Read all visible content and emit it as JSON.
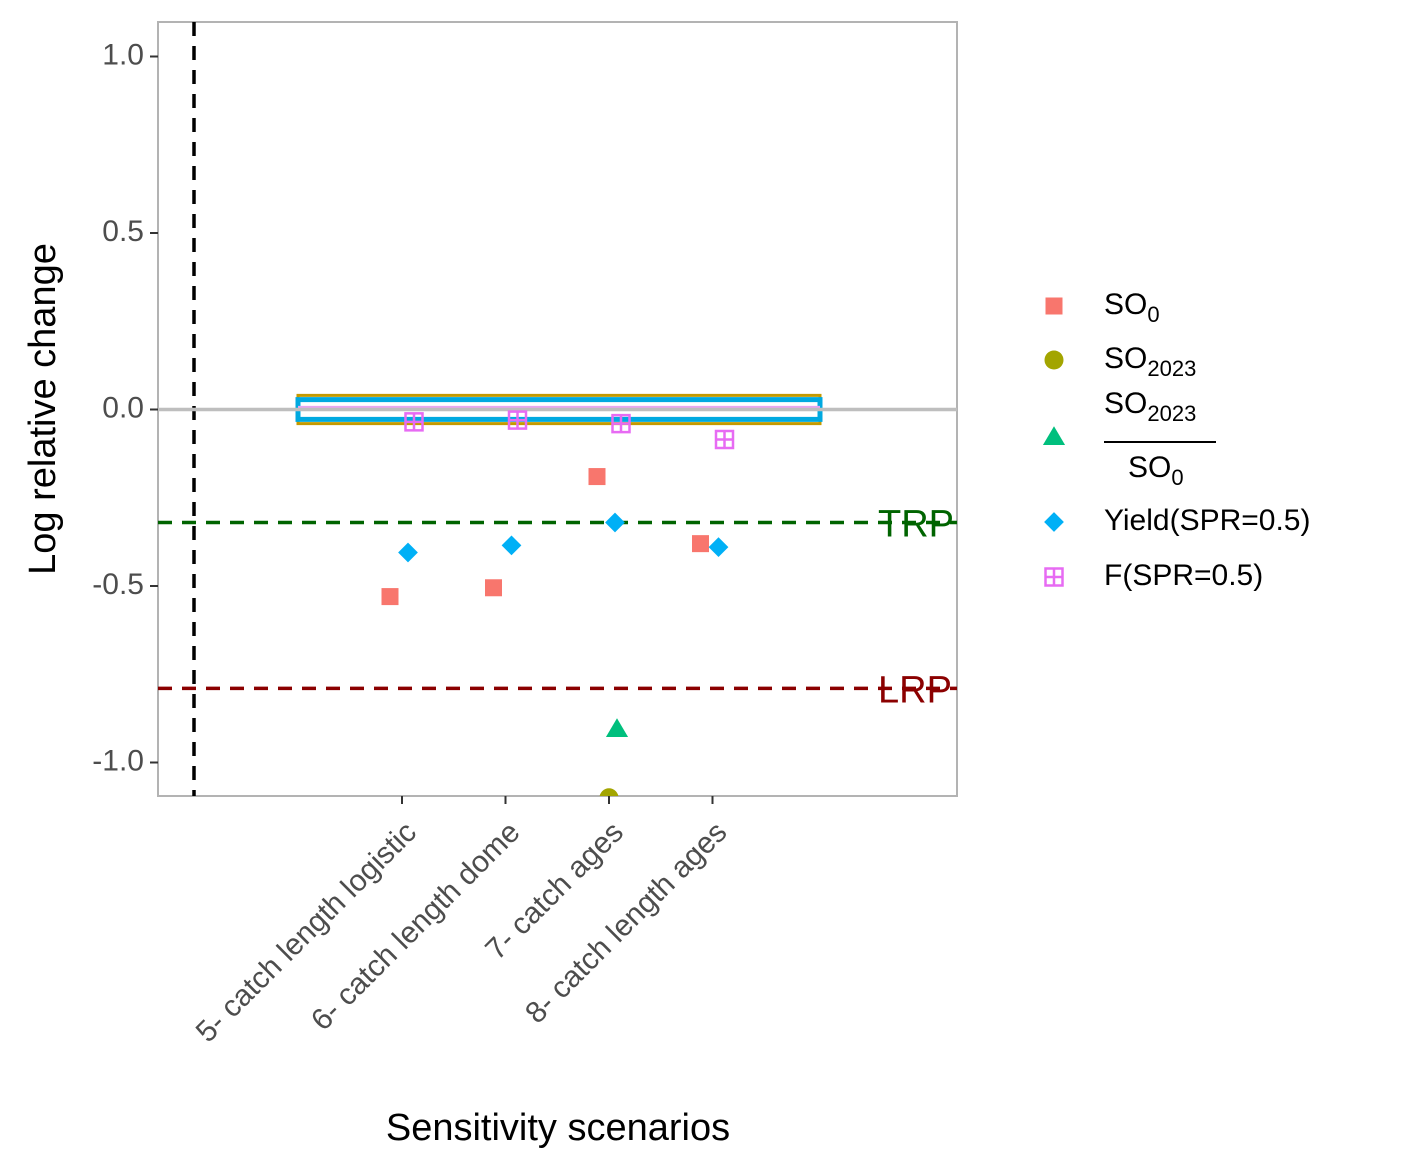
{
  "chart_data": {
    "type": "scatter",
    "xlabel": "Sensitivity scenarios",
    "ylabel": "Log relative change",
    "ylim": [
      -1.1,
      1.1
    ],
    "y_ticks": [
      "1.0",
      "0.5",
      "0.0",
      "-0.5",
      "-1.0"
    ],
    "y_tick_values": [
      1.0,
      0.5,
      0.0,
      -0.5,
      -1.0
    ],
    "grid": false,
    "legend_position": "right",
    "categories": [
      "5- catch length logistic",
      "6- catch length dome",
      "7- catch ages",
      "8- catch length ages"
    ],
    "reference_lines": [
      {
        "label": "TRP",
        "y": -0.32,
        "color": "#006400",
        "style": "dashed"
      },
      {
        "label": "LRP",
        "y": -0.79,
        "color": "#8b0000",
        "style": "dashed"
      },
      {
        "label": "",
        "y": 0.0,
        "color": "#bebebe",
        "style": "solid"
      }
    ],
    "series": [
      {
        "name": "SO",
        "name_sub": "0",
        "shape": "square",
        "color": "#F8766D",
        "values": [
          -0.53,
          -0.505,
          -0.19,
          -0.38
        ]
      },
      {
        "name": "SO",
        "name_sub": "2023",
        "shape": "circle",
        "color": "#A3A500",
        "values": [
          null,
          null,
          -1.1,
          null
        ]
      },
      {
        "name": "SO",
        "name_sub": "2023",
        "name_den": "SO",
        "name_den_sub": "0",
        "shape": "triangle",
        "color": "#00BF7D",
        "values": [
          null,
          null,
          -0.905,
          null
        ]
      },
      {
        "name": "Yield(SPR=0.5)",
        "shape": "diamond",
        "color": "#00B0F6",
        "values": [
          -0.405,
          -0.385,
          -0.32,
          -0.39
        ]
      },
      {
        "name": "F(SPR=0.5)",
        "shape": "square-cross",
        "color": "#E76BF3",
        "values": [
          -0.035,
          -0.03,
          -0.04,
          -0.085
        ]
      }
    ]
  }
}
